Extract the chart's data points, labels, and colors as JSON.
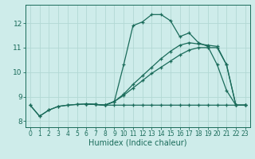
{
  "xlabel": "Humidex (Indice chaleur)",
  "bg_color": "#ceecea",
  "grid_color": "#b2d8d4",
  "line_color": "#1a6b5a",
  "xlim": [
    -0.5,
    23.5
  ],
  "ylim": [
    7.75,
    12.75
  ],
  "xticks": [
    0,
    1,
    2,
    3,
    4,
    5,
    6,
    7,
    8,
    9,
    10,
    11,
    12,
    13,
    14,
    15,
    16,
    17,
    18,
    19,
    20,
    21,
    22,
    23
  ],
  "yticks": [
    8,
    9,
    10,
    11,
    12
  ],
  "lines": [
    {
      "x": [
        0,
        1,
        2,
        3,
        4,
        5,
        6,
        7,
        8,
        9,
        10,
        11,
        12,
        13,
        14,
        15,
        16,
        17,
        18,
        19,
        20,
        21,
        22,
        23
      ],
      "y": [
        8.65,
        8.2,
        8.45,
        8.6,
        8.65,
        8.68,
        8.7,
        8.68,
        8.65,
        8.8,
        10.3,
        11.9,
        12.05,
        12.35,
        12.35,
        12.1,
        11.45,
        11.6,
        11.2,
        11.05,
        10.3,
        9.25,
        8.65,
        8.65
      ]
    },
    {
      "x": [
        6,
        7,
        8,
        9,
        10,
        11,
        12,
        13,
        14,
        15,
        16,
        17,
        18,
        19,
        20,
        21,
        22,
        23
      ],
      "y": [
        8.7,
        8.68,
        8.65,
        8.8,
        9.1,
        9.5,
        9.85,
        10.2,
        10.55,
        10.85,
        11.1,
        11.2,
        11.15,
        11.1,
        11.05,
        10.3,
        8.65,
        8.65
      ]
    },
    {
      "x": [
        6,
        7,
        8,
        9,
        10,
        11,
        12,
        13,
        14,
        15,
        16,
        17,
        18,
        19,
        20,
        21,
        22,
        23
      ],
      "y": [
        8.7,
        8.68,
        8.65,
        8.8,
        9.05,
        9.35,
        9.65,
        9.95,
        10.2,
        10.45,
        10.7,
        10.9,
        11.0,
        11.0,
        11.0,
        10.3,
        8.65,
        8.65
      ]
    },
    {
      "x": [
        0,
        1,
        2,
        3,
        4,
        5,
        6,
        7,
        8,
        9,
        10,
        11,
        12,
        13,
        14,
        15,
        16,
        17,
        18,
        19,
        20,
        21,
        22,
        23
      ],
      "y": [
        8.65,
        8.2,
        8.45,
        8.6,
        8.65,
        8.68,
        8.7,
        8.68,
        8.65,
        8.65,
        8.65,
        8.65,
        8.65,
        8.65,
        8.65,
        8.65,
        8.65,
        8.65,
        8.65,
        8.65,
        8.65,
        8.65,
        8.65,
        8.65
      ]
    }
  ]
}
